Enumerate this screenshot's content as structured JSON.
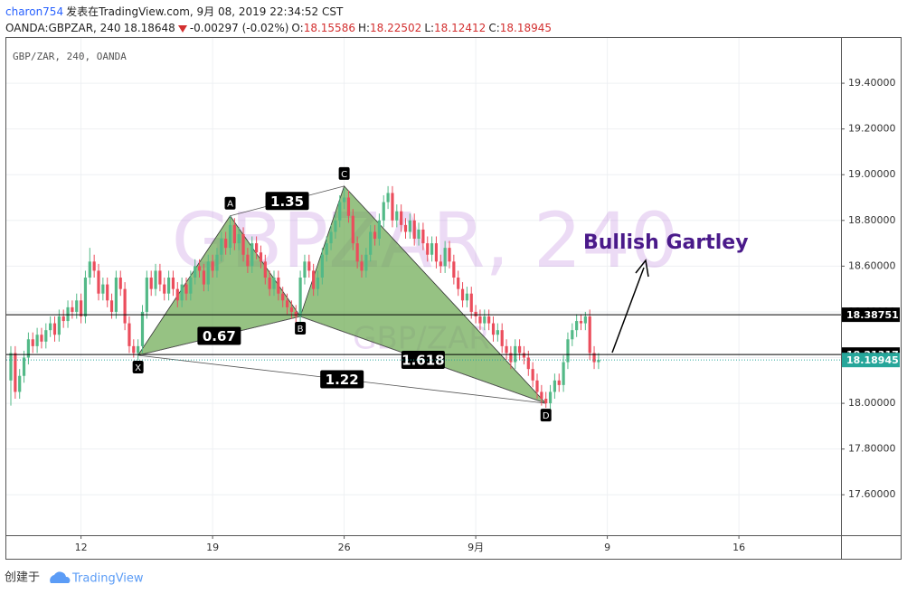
{
  "header": {
    "author": "charon754",
    "published": "发表在TradingView.com, 9月 08, 2019 22:34:52 CST",
    "symbol": "OANDA:GBPZAR, 240",
    "last": "18.18648",
    "change": "-0.00297 (-0.02%)",
    "ohlc": [
      {
        "label": "O:",
        "value": "18.15586"
      },
      {
        "label": "H:",
        "value": "18.22502"
      },
      {
        "label": "L:",
        "value": "18.12412"
      },
      {
        "label": "C:",
        "value": "18.18945"
      }
    ]
  },
  "footer": {
    "created": "创建于",
    "brand": "TradingView"
  },
  "chart_data": {
    "type": "candlestick",
    "legend": "GBP/ZAR, 240, OANDA",
    "watermark": "GBPZAR, 240",
    "watermark_sub": "GBP/ZAR",
    "up_color": "#53b987",
    "down_color": "#eb4d5c",
    "grid": true,
    "categories": [
      null,
      null,
      null,
      null,
      null,
      null,
      null,
      null,
      null,
      null,
      null,
      null,
      null,
      null,
      null,
      null,
      "12",
      null,
      null,
      null,
      null,
      null,
      null,
      null,
      null,
      null,
      null,
      null,
      null,
      null,
      null,
      null,
      null,
      null,
      null,
      null,
      null,
      null,
      null,
      null,
      null,
      null,
      null,
      null,
      null,
      null,
      "19",
      null,
      null,
      null,
      null,
      null,
      null,
      null,
      null,
      null,
      null,
      null,
      null,
      null,
      null,
      null,
      null,
      null,
      null,
      null,
      null,
      null,
      null,
      null,
      null,
      null,
      null,
      null,
      null,
      null,
      "26",
      null,
      null,
      null,
      null,
      null,
      null,
      null,
      null,
      null,
      null,
      null,
      null,
      null,
      null,
      null,
      null,
      null,
      null,
      null,
      null,
      null,
      null,
      null,
      null,
      null,
      null,
      null,
      null,
      null,
      "9月",
      null,
      null,
      null,
      null,
      null,
      null,
      null,
      null,
      null,
      null,
      null,
      null,
      null,
      null,
      null,
      null,
      null,
      null,
      null,
      null,
      null,
      null,
      null,
      null,
      null,
      null,
      null,
      null,
      null,
      "9",
      null,
      null,
      null,
      null,
      null,
      null,
      null,
      null,
      null,
      null,
      null,
      null,
      null,
      null,
      null,
      null,
      null,
      null,
      null,
      null,
      null,
      null,
      null,
      null,
      null,
      null,
      null,
      null,
      null,
      "16",
      null,
      null,
      null,
      null,
      null,
      null,
      null,
      null,
      null,
      null,
      null,
      null,
      null,
      null,
      null,
      null,
      null,
      null,
      null,
      null,
      null,
      null,
      null
    ],
    "open": [
      18.1,
      18.22,
      18.05,
      18.12,
      18.2,
      18.28,
      18.25,
      18.3,
      18.27,
      18.32,
      18.35,
      18.3,
      18.38,
      18.36,
      18.42,
      18.4,
      18.45,
      18.38,
      18.55,
      18.62,
      18.58,
      18.48,
      18.52,
      18.45,
      18.4,
      18.55,
      18.5,
      18.35,
      18.25,
      18.22,
      18.25,
      18.4,
      18.55,
      18.5,
      18.58,
      18.52,
      18.48,
      18.55,
      18.5,
      18.45,
      18.52,
      18.48,
      18.55,
      18.6,
      18.58,
      18.52,
      18.62,
      18.58,
      18.65,
      18.72,
      18.68,
      18.78,
      18.7,
      18.74,
      18.65,
      18.6,
      18.7,
      18.66,
      18.62,
      18.55,
      18.5,
      18.55,
      18.48,
      18.45,
      18.42,
      18.4,
      18.38,
      18.55,
      18.62,
      18.58,
      18.5,
      18.55,
      18.65,
      18.7,
      18.75,
      18.8,
      18.88,
      18.9,
      18.82,
      18.7,
      18.62,
      18.58,
      18.65,
      18.75,
      18.72,
      18.8,
      18.88,
      18.92,
      18.8,
      18.84,
      18.78,
      18.75,
      18.8,
      18.72,
      18.76,
      18.7,
      18.65,
      18.7,
      18.62,
      18.6,
      18.68,
      18.62,
      18.55,
      18.5,
      18.45,
      18.48,
      18.4,
      18.38,
      18.35,
      18.38,
      18.35,
      18.3,
      18.32,
      18.25,
      18.22,
      18.18,
      18.25,
      18.22,
      18.2,
      18.15,
      18.1,
      18.05,
      18.02,
      18.0,
      18.05,
      18.1,
      18.08,
      18.18,
      18.28,
      18.32,
      18.36,
      18.35,
      18.38,
      18.22,
      18.18,
      null,
      null,
      null,
      null,
      null,
      null,
      null,
      null,
      null,
      null,
      null,
      null,
      null,
      null,
      null,
      null,
      null,
      null,
      null,
      null,
      null,
      null,
      null,
      null,
      null,
      null,
      null,
      null,
      null,
      null,
      null,
      null,
      null,
      null,
      null,
      null,
      null,
      null,
      null,
      null,
      null,
      null,
      null,
      null,
      null,
      null,
      null,
      null,
      null,
      null,
      null,
      null,
      null,
      null,
      null
    ],
    "high": [
      18.25,
      18.25,
      18.15,
      18.23,
      18.31,
      18.31,
      18.33,
      18.33,
      18.35,
      18.38,
      18.38,
      18.41,
      18.41,
      18.45,
      18.45,
      18.48,
      18.48,
      18.58,
      18.68,
      18.65,
      18.61,
      18.55,
      18.55,
      18.48,
      18.58,
      18.58,
      18.53,
      18.38,
      18.28,
      18.28,
      18.43,
      18.58,
      18.58,
      18.61,
      18.61,
      18.55,
      18.58,
      18.58,
      18.53,
      18.55,
      18.55,
      18.58,
      18.63,
      18.63,
      18.61,
      18.65,
      18.65,
      18.68,
      18.75,
      18.75,
      18.82,
      18.81,
      18.77,
      18.77,
      18.68,
      18.73,
      18.73,
      18.69,
      18.65,
      18.58,
      18.58,
      18.58,
      18.51,
      18.48,
      18.45,
      18.43,
      18.58,
      18.65,
      18.65,
      18.61,
      18.58,
      18.68,
      18.73,
      18.78,
      18.83,
      18.91,
      18.94,
      18.93,
      18.85,
      18.73,
      18.65,
      18.68,
      18.78,
      18.78,
      18.83,
      18.91,
      18.95,
      18.95,
      18.87,
      18.87,
      18.81,
      18.83,
      18.83,
      18.79,
      18.79,
      18.73,
      18.73,
      18.73,
      18.65,
      18.71,
      18.71,
      18.65,
      18.58,
      18.53,
      18.51,
      18.51,
      18.43,
      18.41,
      18.41,
      18.41,
      18.38,
      18.35,
      18.35,
      18.28,
      18.25,
      18.28,
      18.28,
      18.25,
      18.23,
      18.18,
      18.13,
      18.08,
      18.05,
      18.08,
      18.13,
      18.13,
      18.21,
      18.31,
      18.35,
      18.39,
      18.39,
      18.4,
      18.41,
      18.25,
      18.22,
      null,
      null,
      null,
      null,
      null,
      null,
      null,
      null,
      null,
      null,
      null,
      null,
      null,
      null,
      null,
      null,
      null,
      null,
      null,
      null,
      null,
      null,
      null,
      null,
      null,
      null,
      null,
      null,
      null,
      null,
      null,
      null,
      null,
      null,
      null,
      null,
      null,
      null,
      null,
      null,
      null,
      null,
      null,
      null,
      null,
      null,
      null,
      null,
      null,
      null,
      null,
      null,
      null,
      null,
      null
    ],
    "low": [
      17.99,
      18.02,
      18.02,
      18.09,
      18.17,
      18.22,
      18.22,
      18.24,
      18.24,
      18.29,
      18.27,
      18.27,
      18.33,
      18.33,
      18.37,
      18.37,
      18.35,
      18.35,
      18.52,
      18.55,
      18.45,
      18.45,
      18.42,
      18.37,
      18.37,
      18.47,
      18.32,
      18.22,
      18.2,
      18.19,
      18.22,
      18.37,
      18.47,
      18.47,
      18.49,
      18.45,
      18.45,
      18.47,
      18.42,
      18.42,
      18.45,
      18.45,
      18.52,
      18.55,
      18.49,
      18.49,
      18.55,
      18.55,
      18.62,
      18.65,
      18.65,
      18.67,
      18.67,
      18.62,
      18.57,
      18.57,
      18.63,
      18.59,
      18.52,
      18.47,
      18.47,
      18.45,
      18.42,
      18.39,
      18.37,
      18.35,
      18.35,
      18.52,
      18.55,
      18.47,
      18.47,
      18.52,
      18.62,
      18.67,
      18.72,
      18.77,
      18.85,
      18.79,
      18.67,
      18.59,
      18.55,
      18.55,
      18.62,
      18.69,
      18.69,
      18.77,
      18.85,
      18.77,
      18.77,
      18.75,
      18.72,
      18.72,
      18.69,
      18.69,
      18.67,
      18.62,
      18.62,
      18.59,
      18.57,
      18.57,
      18.59,
      18.52,
      18.47,
      18.42,
      18.42,
      18.37,
      18.35,
      18.32,
      18.32,
      18.32,
      18.27,
      18.27,
      18.22,
      18.19,
      18.15,
      18.15,
      18.19,
      18.17,
      18.12,
      18.07,
      18.02,
      17.99,
      17.98,
      17.97,
      18.02,
      18.05,
      18.05,
      18.15,
      18.25,
      18.29,
      18.32,
      18.32,
      18.19,
      18.15,
      18.15,
      null,
      null,
      null,
      null,
      null,
      null,
      null,
      null,
      null,
      null,
      null,
      null,
      null,
      null,
      null,
      null,
      null,
      null,
      null,
      null,
      null,
      null,
      null,
      null,
      null,
      null,
      null,
      null,
      null,
      null,
      null,
      null,
      null,
      null,
      null,
      null,
      null,
      null,
      null,
      null,
      null,
      null,
      null,
      null,
      null,
      null,
      null,
      null,
      null,
      null,
      null,
      null,
      null,
      null,
      null
    ],
    "close": [
      18.22,
      18.05,
      18.12,
      18.2,
      18.28,
      18.25,
      18.3,
      18.27,
      18.32,
      18.35,
      18.3,
      18.38,
      18.36,
      18.42,
      18.4,
      18.45,
      18.38,
      18.55,
      18.62,
      18.58,
      18.48,
      18.52,
      18.45,
      18.4,
      18.55,
      18.5,
      18.35,
      18.25,
      18.22,
      18.25,
      18.4,
      18.55,
      18.5,
      18.58,
      18.52,
      18.48,
      18.55,
      18.5,
      18.45,
      18.52,
      18.48,
      18.55,
      18.6,
      18.58,
      18.52,
      18.62,
      18.58,
      18.65,
      18.72,
      18.68,
      18.78,
      18.7,
      18.74,
      18.65,
      18.6,
      18.7,
      18.66,
      18.62,
      18.55,
      18.5,
      18.55,
      18.48,
      18.45,
      18.42,
      18.4,
      18.38,
      18.55,
      18.62,
      18.58,
      18.5,
      18.55,
      18.65,
      18.7,
      18.75,
      18.8,
      18.88,
      18.9,
      18.82,
      18.7,
      18.62,
      18.58,
      18.65,
      18.75,
      18.72,
      18.8,
      18.88,
      18.92,
      18.8,
      18.84,
      18.78,
      18.75,
      18.8,
      18.72,
      18.76,
      18.7,
      18.65,
      18.7,
      18.62,
      18.6,
      18.68,
      18.62,
      18.55,
      18.5,
      18.45,
      18.48,
      18.4,
      18.38,
      18.35,
      18.38,
      18.35,
      18.3,
      18.32,
      18.25,
      18.22,
      18.18,
      18.25,
      18.22,
      18.2,
      18.15,
      18.1,
      18.05,
      18.02,
      18.0,
      18.05,
      18.1,
      18.08,
      18.18,
      18.28,
      18.32,
      18.36,
      18.35,
      18.38,
      18.22,
      18.18,
      18.19,
      null,
      null,
      null,
      null,
      null,
      null,
      null,
      null,
      null,
      null,
      null,
      null,
      null,
      null,
      null,
      null,
      null,
      null,
      null,
      null,
      null,
      null,
      null,
      null,
      null,
      null,
      null,
      null,
      null,
      null,
      null,
      null,
      null,
      null,
      null,
      null,
      null,
      null,
      null,
      null,
      null,
      null,
      null,
      null,
      null,
      null,
      null,
      null,
      null,
      null,
      null,
      null,
      null,
      null,
      null
    ],
    "ylim": [
      17.423,
      19.598
    ],
    "yticks": [
      {
        "value": 17.6,
        "label": "17.60000"
      },
      {
        "value": 17.8,
        "label": "17.80000"
      },
      {
        "value": 18,
        "label": "18.00000"
      },
      {
        "value": 18.2,
        "label": "18.20000"
      },
      {
        "value": 18.4,
        "label": "18.40000"
      },
      {
        "value": 18.6,
        "label": "18.60000"
      },
      {
        "value": 18.8,
        "label": "18.80000"
      },
      {
        "value": 19,
        "label": "19.00000"
      },
      {
        "value": 19.2,
        "label": "19.20000"
      },
      {
        "value": 19.4,
        "label": "19.40000"
      }
    ],
    "price_lines": [
      {
        "value": 18.38751,
        "color": "#000000",
        "style": "solid"
      },
      {
        "value": 18.21317,
        "color": "#000000",
        "style": "solid"
      },
      {
        "value": 18.18945,
        "color": "#26a69a",
        "style": "dotted"
      }
    ],
    "pattern": {
      "fill": "#6aa84f",
      "points": [
        {
          "label": "X",
          "index": 29,
          "price": 18.21
        },
        {
          "label": "A",
          "index": 50,
          "price": 18.82
        },
        {
          "label": "B",
          "index": 66,
          "price": 18.38
        },
        {
          "label": "C",
          "index": 76,
          "price": 18.95
        },
        {
          "label": "D",
          "index": 122,
          "price": 18.0
        }
      ],
      "ratios": [
        {
          "value": 1.35,
          "from": "A",
          "to": "C"
        },
        {
          "value": 0.67,
          "from": "X",
          "to": "B"
        },
        {
          "value": 1.618,
          "from": "B",
          "to": "D"
        },
        {
          "value": 1.22,
          "from": "X",
          "to": "D"
        }
      ]
    },
    "annotation": "Bullish Gartley"
  }
}
